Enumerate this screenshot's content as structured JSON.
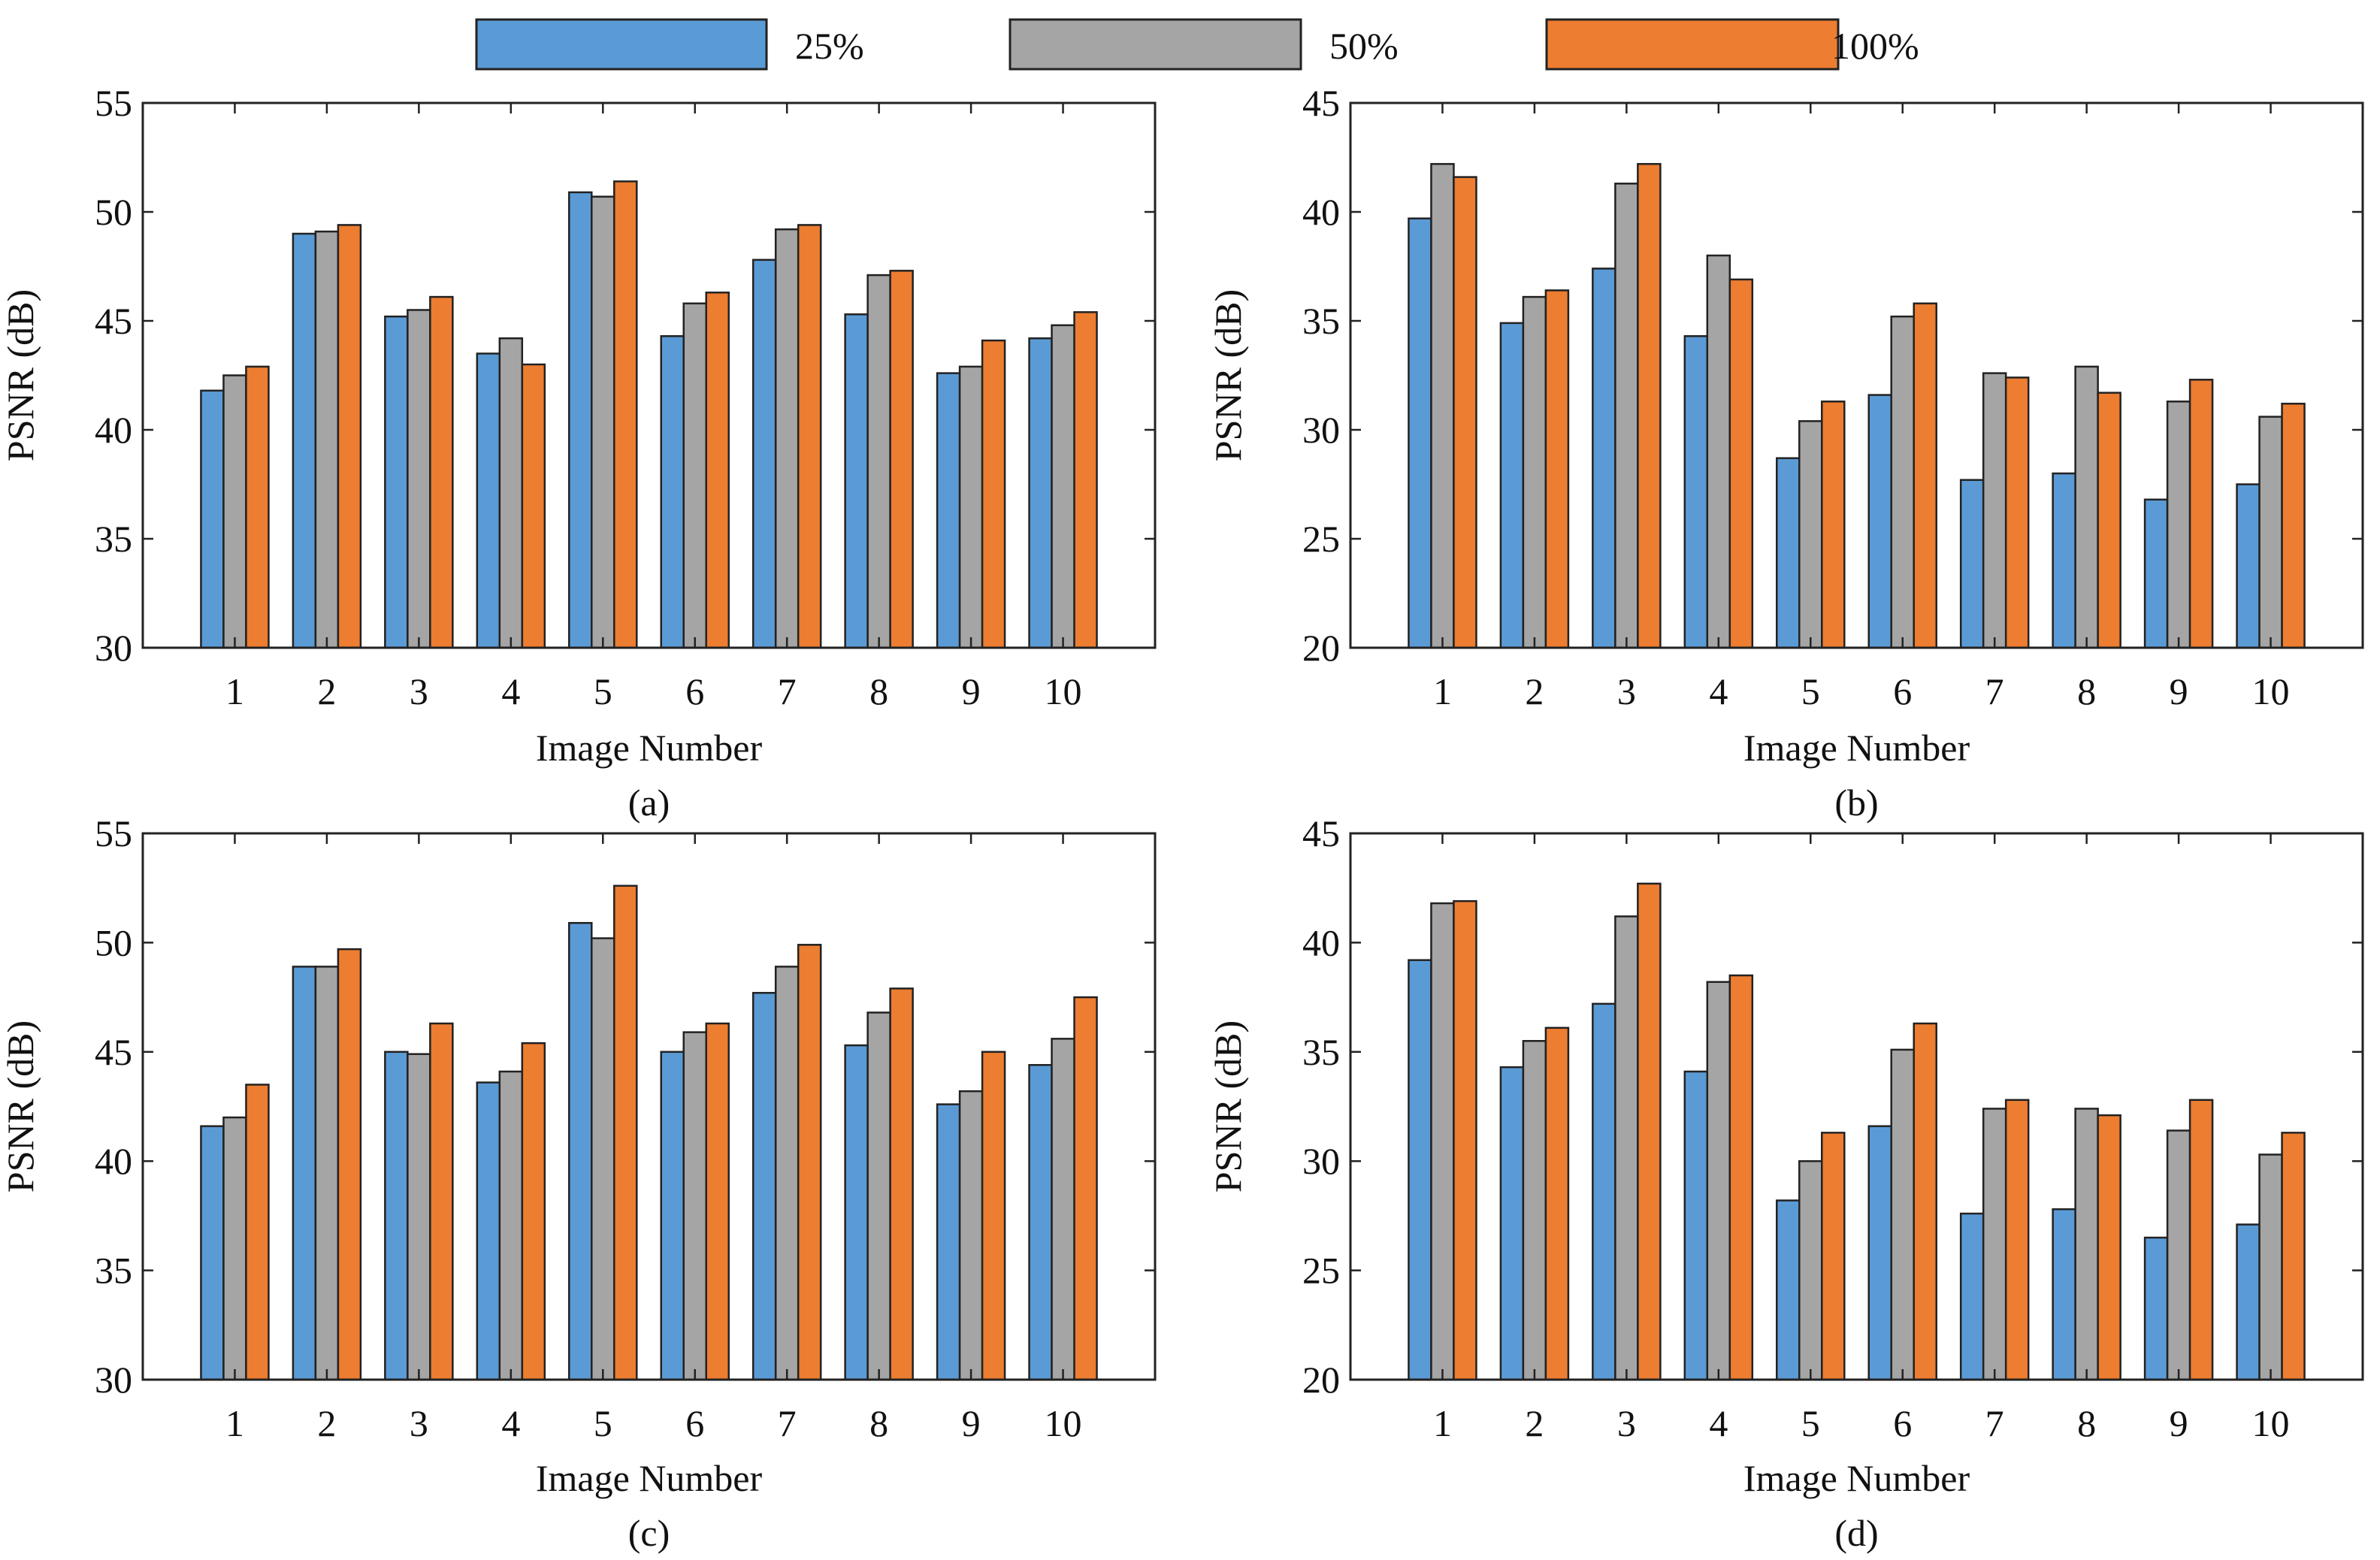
{
  "legend": {
    "entries": [
      {
        "name": "25%",
        "color": "#5B9BD5"
      },
      {
        "name": "50%",
        "color": "#A5A5A5"
      },
      {
        "name": "100%",
        "color": "#ED7D31"
      }
    ]
  },
  "chart_data": [
    {
      "type": "bar",
      "panel": "(a)",
      "xlabel": "Image Number",
      "ylabel": "PSNR (dB)",
      "ylim": [
        30,
        55
      ],
      "yticks": [
        30,
        35,
        40,
        45,
        50,
        55
      ],
      "categories": [
        "1",
        "2",
        "3",
        "4",
        "5",
        "6",
        "7",
        "8",
        "9",
        "10"
      ],
      "series": [
        {
          "name": "25%",
          "values": [
            41.8,
            49.0,
            45.2,
            43.5,
            50.9,
            44.3,
            47.8,
            45.3,
            42.6,
            44.2
          ]
        },
        {
          "name": "50%",
          "values": [
            42.5,
            49.1,
            45.5,
            44.2,
            50.7,
            45.8,
            49.2,
            47.1,
            42.9,
            44.8
          ]
        },
        {
          "name": "100%",
          "values": [
            42.9,
            49.4,
            46.1,
            43.0,
            51.4,
            46.3,
            49.4,
            47.3,
            44.1,
            45.4
          ]
        }
      ]
    },
    {
      "type": "bar",
      "panel": "(b)",
      "xlabel": "Image Number",
      "ylabel": "PSNR (dB)",
      "ylim": [
        20,
        45
      ],
      "yticks": [
        20,
        25,
        30,
        35,
        40,
        45
      ],
      "categories": [
        "1",
        "2",
        "3",
        "4",
        "5",
        "6",
        "7",
        "8",
        "9",
        "10"
      ],
      "series": [
        {
          "name": "25%",
          "values": [
            39.7,
            34.9,
            37.4,
            34.3,
            28.7,
            31.6,
            27.7,
            28.0,
            26.8,
            27.5
          ]
        },
        {
          "name": "50%",
          "values": [
            42.2,
            36.1,
            41.3,
            38.0,
            30.4,
            35.2,
            32.6,
            32.9,
            31.3,
            30.6
          ]
        },
        {
          "name": "100%",
          "values": [
            41.6,
            36.4,
            42.2,
            36.9,
            31.3,
            35.8,
            32.4,
            31.7,
            32.3,
            31.2
          ]
        }
      ]
    },
    {
      "type": "bar",
      "panel": "(c)",
      "xlabel": "Image Number",
      "ylabel": "PSNR (dB)",
      "ylim": [
        30,
        55
      ],
      "yticks": [
        30,
        35,
        40,
        45,
        50,
        55
      ],
      "categories": [
        "1",
        "2",
        "3",
        "4",
        "5",
        "6",
        "7",
        "8",
        "9",
        "10"
      ],
      "series": [
        {
          "name": "25%",
          "values": [
            41.6,
            48.9,
            45.0,
            43.6,
            50.9,
            45.0,
            47.7,
            45.3,
            42.6,
            44.4
          ]
        },
        {
          "name": "50%",
          "values": [
            42.0,
            48.9,
            44.9,
            44.1,
            50.2,
            45.9,
            48.9,
            46.8,
            43.2,
            45.6
          ]
        },
        {
          "name": "100%",
          "values": [
            43.5,
            49.7,
            46.3,
            45.4,
            52.6,
            46.3,
            49.9,
            47.9,
            45.0,
            47.5
          ]
        }
      ]
    },
    {
      "type": "bar",
      "panel": "(d)",
      "xlabel": "Image Number",
      "ylabel": "PSNR (dB)",
      "ylim": [
        20,
        45
      ],
      "yticks": [
        20,
        25,
        30,
        35,
        40,
        45
      ],
      "categories": [
        "1",
        "2",
        "3",
        "4",
        "5",
        "6",
        "7",
        "8",
        "9",
        "10"
      ],
      "series": [
        {
          "name": "25%",
          "values": [
            39.2,
            34.3,
            37.2,
            34.1,
            28.2,
            31.6,
            27.6,
            27.8,
            26.5,
            27.1
          ]
        },
        {
          "name": "50%",
          "values": [
            41.8,
            35.5,
            41.2,
            38.2,
            30.0,
            35.1,
            32.4,
            32.4,
            31.4,
            30.3
          ]
        },
        {
          "name": "100%",
          "values": [
            41.9,
            36.1,
            42.7,
            38.5,
            31.3,
            36.3,
            32.8,
            32.1,
            32.8,
            31.3
          ]
        }
      ]
    }
  ]
}
